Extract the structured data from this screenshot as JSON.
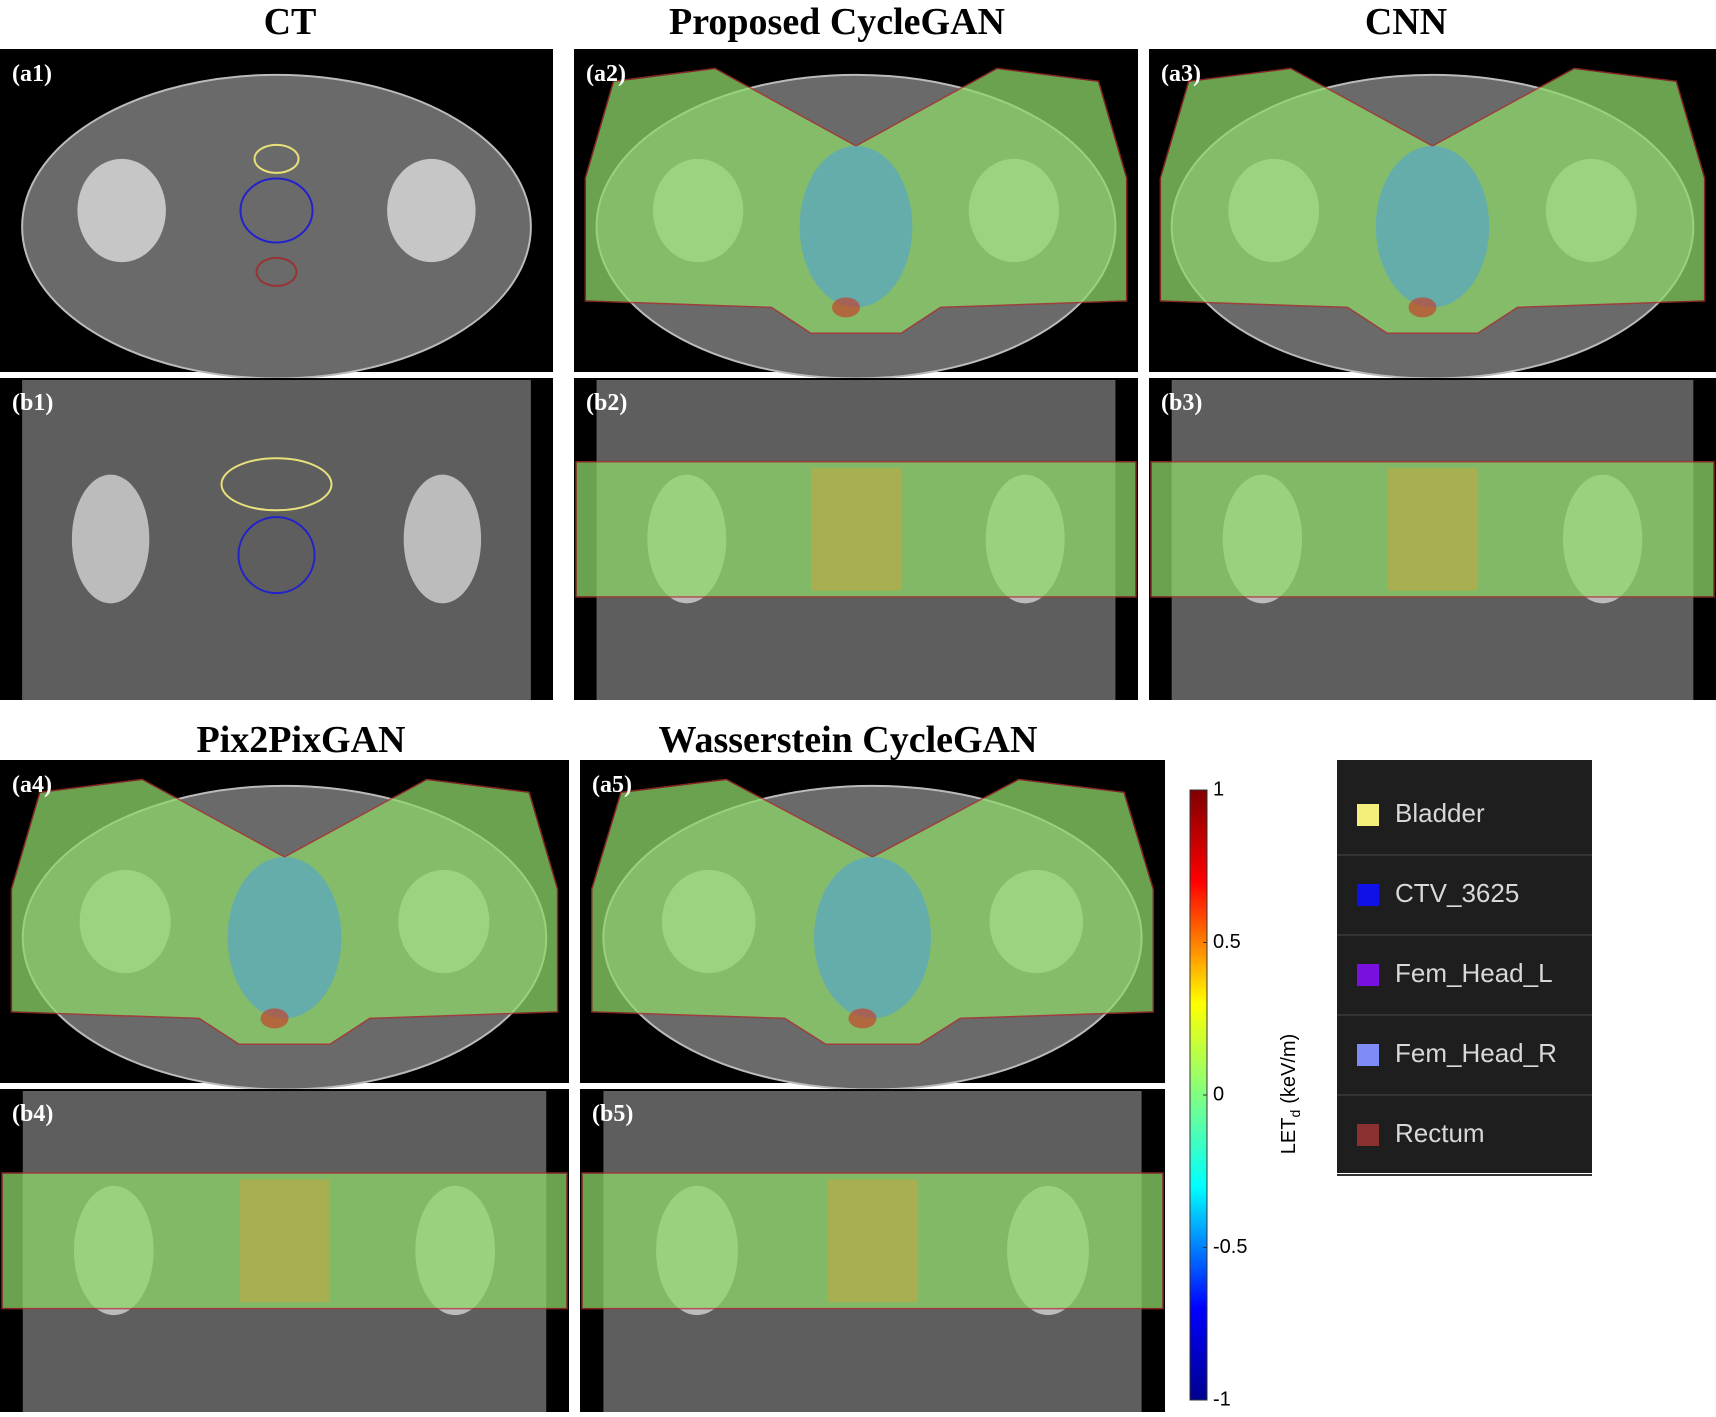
{
  "titles": [
    "CT",
    "Proposed CycleGAN",
    "CNN",
    "Pix2PixGAN",
    "Wasserstein CycleGAN"
  ],
  "panels": [
    "(a1)",
    "(a2)",
    "(a3)",
    "(b1)",
    "(b2)",
    "(b3)",
    "(a4)",
    "(a5)",
    "(b4)",
    "(b5)"
  ],
  "colorbar": {
    "ticks": [
      1,
      0.5,
      0,
      -0.5,
      -1
    ],
    "label": "LET",
    "subscript": "d",
    "unit": "(keV/m)"
  },
  "legend": [
    {
      "name": "Bladder",
      "color": "#f4ee7a"
    },
    {
      "name": "CTV_3625",
      "color": "#1010e8"
    },
    {
      "name": "Fem_Head_L",
      "color": "#7a10e0"
    },
    {
      "name": "Fem_Head_R",
      "color": "#7f8cf8"
    },
    {
      "name": "Rectum",
      "color": "#8a3030"
    }
  ]
}
